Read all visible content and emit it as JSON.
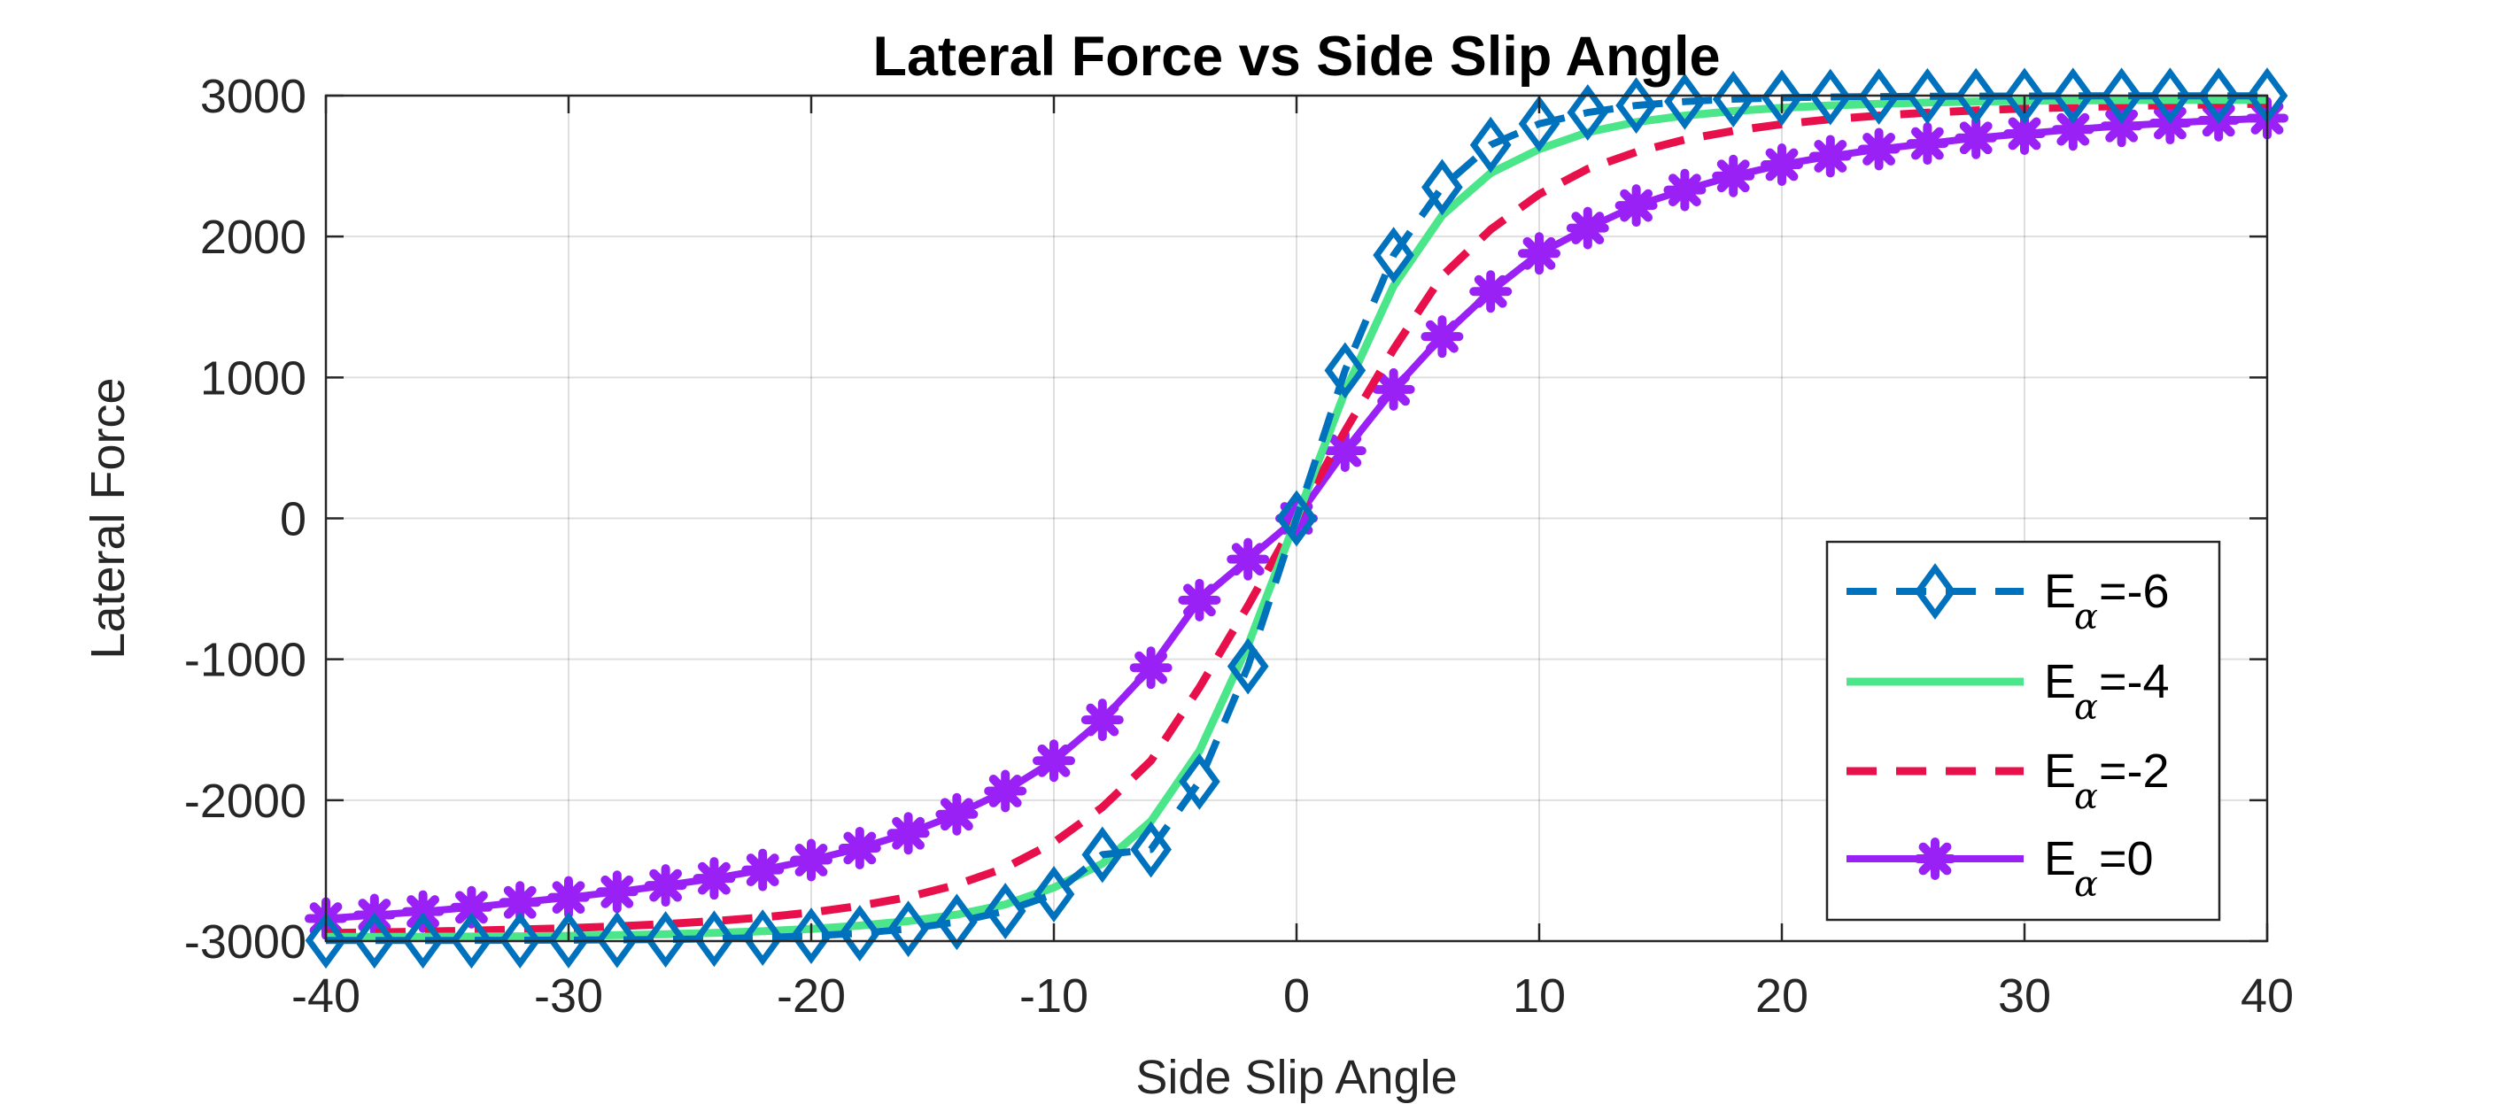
{
  "chart_data": {
    "type": "line",
    "title": "Lateral Force vs Side Slip Angle",
    "xlabel": "Side Slip Angle",
    "ylabel": "Lateral Force",
    "xlim": [
      -40,
      40
    ],
    "ylim": [
      -3000,
      3000
    ],
    "xticks": [
      "-40",
      "-30",
      "-20",
      "-10",
      "0",
      "10",
      "20",
      "30",
      "40"
    ],
    "yticks": [
      "3000",
      "2000",
      "1000",
      "0",
      "-1000",
      "-2000",
      "-3000"
    ],
    "grid": true,
    "legend_position": "bottom-right",
    "x": [
      -40,
      -38,
      -36,
      -34,
      -32,
      -30,
      -28,
      -26,
      -24,
      -22,
      -20,
      -18,
      -16,
      -14,
      -12,
      -10,
      -8,
      -6,
      -4,
      -2,
      0,
      2,
      4,
      6,
      8,
      10,
      12,
      14,
      16,
      18,
      20,
      22,
      24,
      26,
      28,
      30,
      32,
      34,
      36,
      38,
      40
    ],
    "series": [
      {
        "legend_main": "E",
        "legend_sub": "α",
        "legend_value": " =-6",
        "color": "#0072BD",
        "line": "dashed",
        "marker": "diamond",
        "values": [
          -2995,
          -2995,
          -2995,
          -2995,
          -2994,
          -2993,
          -2991,
          -2988,
          -2983,
          -2975,
          -2963,
          -2944,
          -2913,
          -2864,
          -2787,
          -2667,
          -2387,
          -2350,
          -1868,
          -1050,
          0,
          1050,
          1868,
          2350,
          2650,
          2800,
          2880,
          2930,
          2958,
          2975,
          2985,
          2990,
          2993,
          2995,
          2996,
          2997,
          2998,
          2998,
          2999,
          2999,
          2999
        ]
      },
      {
        "legend_main": "E",
        "legend_sub": "α",
        "legend_value": " =-4",
        "color": "#4CE68A",
        "line": "solid",
        "marker": "none",
        "values": [
          -2970,
          -2970,
          -2969,
          -2968,
          -2966,
          -2963,
          -2958,
          -2951,
          -2942,
          -2930,
          -2913,
          -2890,
          -2858,
          -2812,
          -2740,
          -2620,
          -2450,
          -2150,
          -1650,
          -900,
          0,
          900,
          1650,
          2150,
          2450,
          2620,
          2740,
          2812,
          2858,
          2890,
          2913,
          2930,
          2942,
          2951,
          2958,
          2963,
          2966,
          2968,
          2969,
          2970,
          2970
        ]
      },
      {
        "legend_main": "E",
        "legend_sub": "α",
        "legend_value": " =-2",
        "color": "#E8104B",
        "line": "dashed",
        "marker": "none",
        "values": [
          -2943,
          -2938,
          -2933,
          -2926,
          -2918,
          -2908,
          -2895,
          -2879,
          -2858,
          -2832,
          -2797,
          -2750,
          -2688,
          -2600,
          -2480,
          -2300,
          -2050,
          -1720,
          -1200,
          -620,
          0,
          620,
          1200,
          1720,
          2050,
          2300,
          2480,
          2600,
          2688,
          2750,
          2797,
          2832,
          2858,
          2879,
          2895,
          2908,
          2918,
          2926,
          2933,
          2938,
          2943
        ]
      },
      {
        "legend_main": "E",
        "legend_sub": "α",
        "legend_value": " =0",
        "color": "#9A21F5",
        "line": "solid",
        "marker": "asterisk",
        "values": [
          -2840,
          -2815,
          -2790,
          -2760,
          -2725,
          -2690,
          -2650,
          -2605,
          -2555,
          -2495,
          -2425,
          -2340,
          -2235,
          -2100,
          -1935,
          -1720,
          -1430,
          -1060,
          -580,
          -290,
          0,
          480,
          915,
          1290,
          1610,
          1880,
          2060,
          2220,
          2330,
          2430,
          2510,
          2570,
          2620,
          2660,
          2700,
          2730,
          2760,
          2785,
          2805,
          2825,
          2840
        ]
      }
    ]
  }
}
